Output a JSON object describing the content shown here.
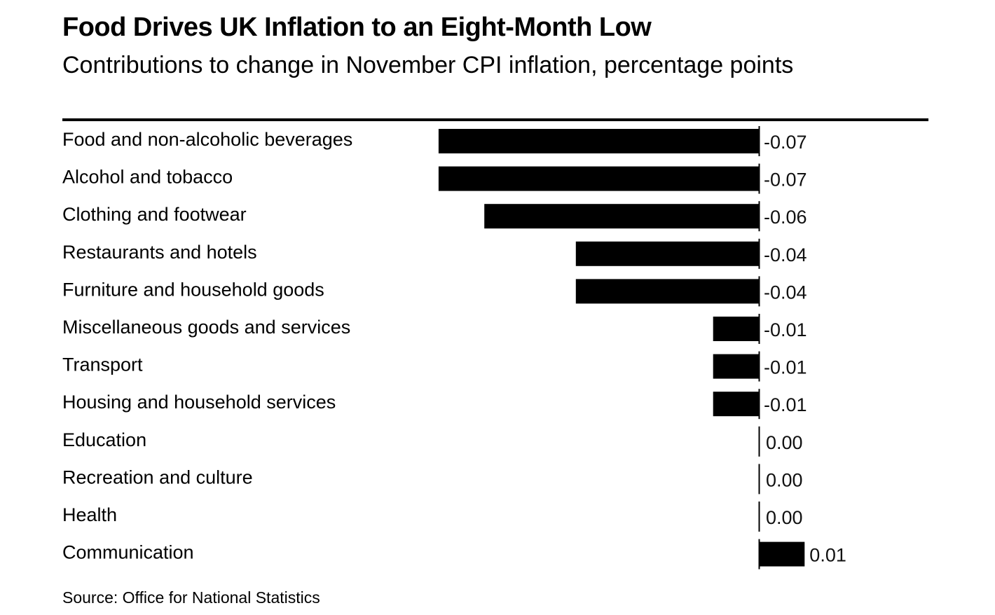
{
  "chart_data": {
    "type": "bar",
    "orientation": "horizontal",
    "title": "Food Drives UK Inflation to an Eight-Month Low",
    "subtitle": "Contributions to change in November CPI inflation, percentage points",
    "xlabel": "",
    "ylabel": "",
    "xlim": [
      -0.07,
      0.01
    ],
    "grid": false,
    "legend": "none",
    "categories": [
      "Food and non-alcoholic beverages",
      "Alcohol and tobacco",
      "Clothing and footwear",
      "Restaurants and hotels",
      "Furniture and household goods",
      "Miscellaneous goods and services",
      "Transport",
      "Housing and household services",
      "Education",
      "Recreation and culture",
      "Health",
      "Communication"
    ],
    "values": [
      -0.07,
      -0.07,
      -0.06,
      -0.04,
      -0.04,
      -0.01,
      -0.01,
      -0.01,
      0.0,
      0.0,
      0.0,
      0.01
    ],
    "value_labels": [
      "-0.07",
      "-0.07",
      "-0.06",
      "-0.04",
      "-0.04",
      "-0.01",
      "-0.01",
      "-0.01",
      "0.00",
      "0.00",
      "0.00",
      "0.01"
    ],
    "bar_color": "#000000",
    "source": "Source: Office for National Statistics"
  }
}
